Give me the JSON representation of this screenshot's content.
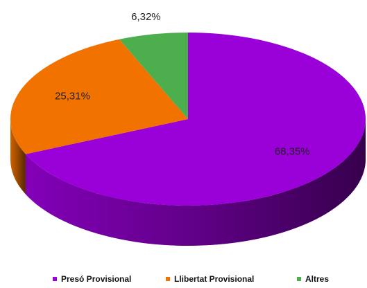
{
  "chart_data": {
    "type": "pie",
    "categories": [
      "Presó Provisional",
      "Llibertat Provisional",
      "Altres"
    ],
    "values": [
      68.35,
      25.31,
      6.32
    ],
    "value_labels": [
      "68,35%",
      "25,31%",
      "6,32%"
    ],
    "colors": [
      "#9a00d8",
      "#f27200",
      "#4cae4c"
    ],
    "legend": "bottom"
  }
}
